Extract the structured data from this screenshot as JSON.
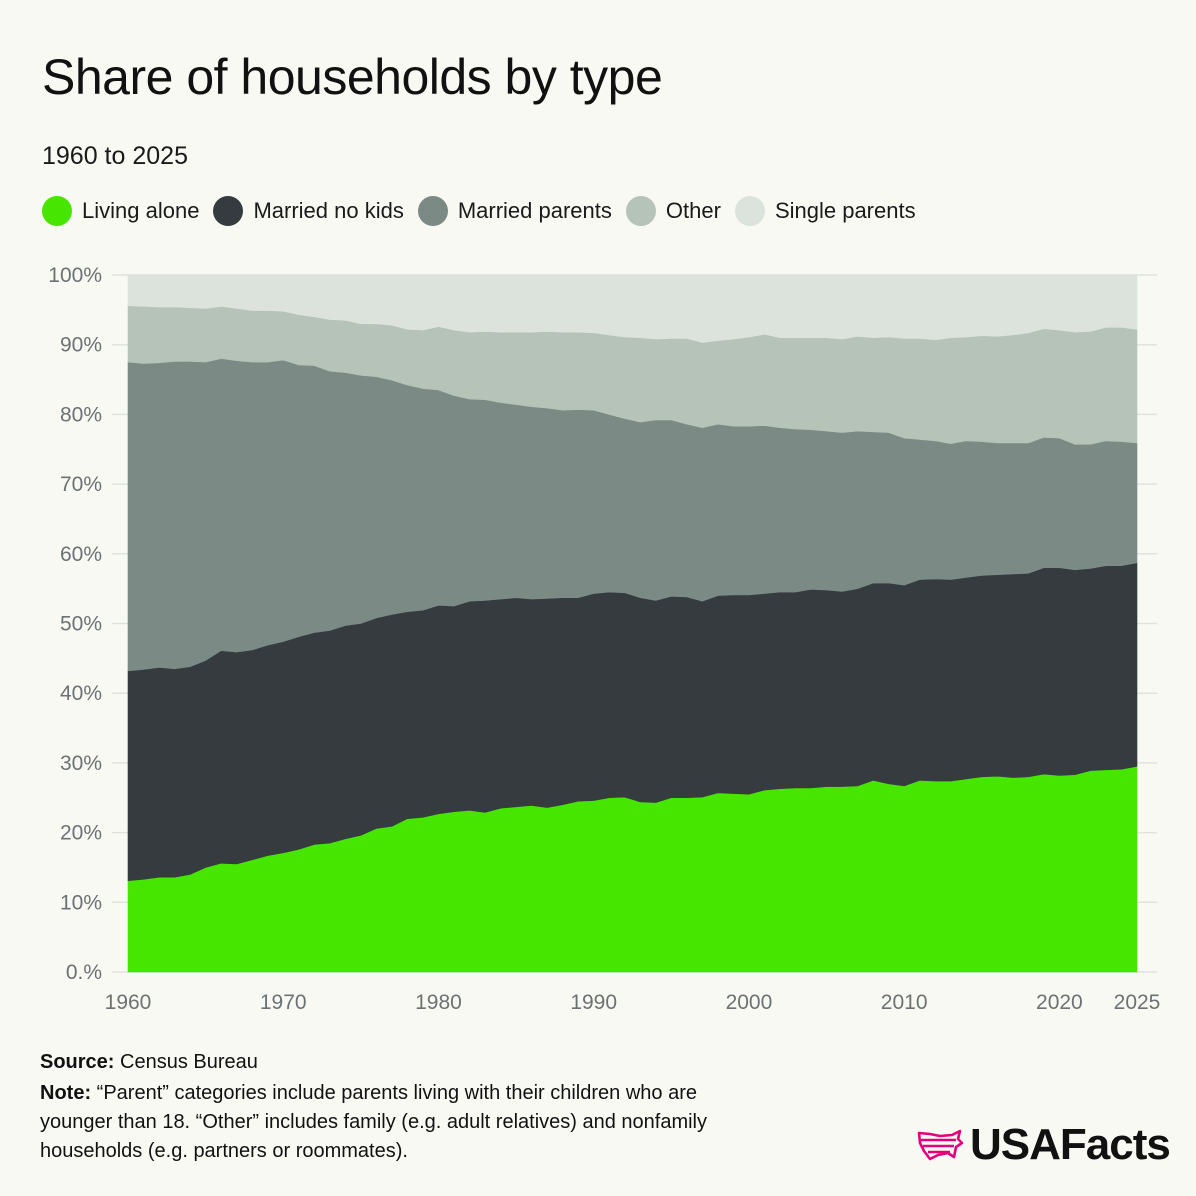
{
  "title": "Share of households by type",
  "subtitle": "1960 to 2025",
  "footer": {
    "source_label": "Source:",
    "source_text": "Census Bureau",
    "note_label": "Note:",
    "note_text": "“Parent” categories include parents living with their children who are younger than 18. “Other” includes family (e.g. adult relatives) and nonfamily households (e.g. partners or roommates)."
  },
  "brand": {
    "name": "USAFacts",
    "icon": "usa-map-icon",
    "color": "#e4007c"
  },
  "chart_data": {
    "type": "area",
    "stacked": true,
    "title": "Share of households by type",
    "subtitle": "1960 to 2025",
    "xlim": [
      1960,
      2025
    ],
    "ylim": [
      0,
      100
    ],
    "grid": true,
    "legend_position": "top-left",
    "y_ticks": [
      0,
      10,
      20,
      30,
      40,
      50,
      60,
      70,
      80,
      90,
      100
    ],
    "y_tick_labels": [
      "0.%",
      "10%",
      "20%",
      "30%",
      "40%",
      "50%",
      "60%",
      "70%",
      "80%",
      "90%",
      "100%"
    ],
    "x_ticks": [
      1960,
      1970,
      1980,
      1990,
      2000,
      2010,
      2020,
      2025
    ],
    "x_tick_labels": [
      "1960",
      "1970",
      "1980",
      "1990",
      "2000",
      "2010",
      "2020",
      "2025"
    ],
    "x": [
      1960,
      1961,
      1962,
      1963,
      1964,
      1965,
      1966,
      1967,
      1968,
      1969,
      1970,
      1971,
      1972,
      1973,
      1974,
      1975,
      1976,
      1977,
      1978,
      1979,
      1980,
      1981,
      1982,
      1983,
      1984,
      1985,
      1986,
      1987,
      1988,
      1989,
      1990,
      1991,
      1992,
      1993,
      1994,
      1995,
      1996,
      1997,
      1998,
      1999,
      2000,
      2001,
      2002,
      2003,
      2004,
      2005,
      2006,
      2007,
      2008,
      2009,
      2010,
      2011,
      2012,
      2013,
      2014,
      2015,
      2016,
      2017,
      2018,
      2019,
      2020,
      2021,
      2022,
      2023,
      2024,
      2025
    ],
    "series": [
      {
        "name": "Living alone",
        "color": "#46e600",
        "values": [
          13.1,
          13.3,
          13.6,
          13.6,
          14.0,
          15.0,
          15.6,
          15.5,
          16.1,
          16.7,
          17.1,
          17.6,
          18.3,
          18.5,
          19.1,
          19.6,
          20.6,
          20.9,
          22.0,
          22.2,
          22.7,
          23.0,
          23.2,
          22.9,
          23.5,
          23.7,
          23.9,
          23.6,
          24.0,
          24.5,
          24.6,
          25.0,
          25.1,
          24.4,
          24.3,
          25.0,
          25.0,
          25.1,
          25.7,
          25.6,
          25.5,
          26.1,
          26.3,
          26.4,
          26.4,
          26.6,
          26.6,
          26.7,
          27.5,
          27.0,
          26.7,
          27.5,
          27.4,
          27.4,
          27.7,
          28.0,
          28.1,
          27.9,
          28.0,
          28.4,
          28.2,
          28.3,
          28.9,
          29.0,
          29.1,
          29.5
        ]
      },
      {
        "name": "Married no kids",
        "color": "#353b3e",
        "values": [
          30.1,
          30.1,
          30.1,
          29.9,
          29.8,
          29.7,
          30.5,
          30.4,
          30.1,
          30.2,
          30.3,
          30.5,
          30.4,
          30.5,
          30.6,
          30.4,
          30.2,
          30.4,
          29.7,
          29.7,
          29.9,
          29.5,
          30.0,
          30.4,
          30.0,
          30.0,
          29.6,
          30.0,
          29.7,
          29.2,
          29.7,
          29.5,
          29.3,
          29.3,
          29.0,
          28.9,
          28.8,
          28.1,
          28.3,
          28.5,
          28.6,
          28.2,
          28.2,
          28.1,
          28.5,
          28.2,
          28.0,
          28.3,
          28.3,
          28.8,
          28.8,
          28.8,
          29.0,
          28.9,
          28.9,
          28.9,
          28.9,
          29.2,
          29.2,
          29.6,
          29.8,
          29.4,
          29.0,
          29.3,
          29.2,
          29.2
        ]
      },
      {
        "name": "Married parents",
        "color": "#7b8a85",
        "values": [
          44.3,
          43.9,
          43.7,
          44.1,
          43.8,
          42.8,
          41.9,
          41.8,
          41.3,
          40.6,
          40.4,
          39.0,
          38.3,
          37.2,
          36.3,
          35.6,
          34.6,
          33.6,
          32.5,
          31.8,
          30.9,
          30.2,
          29.0,
          28.8,
          28.2,
          27.7,
          27.6,
          27.3,
          26.9,
          27.0,
          26.3,
          25.5,
          25.0,
          25.2,
          25.9,
          25.3,
          24.8,
          24.9,
          24.6,
          24.2,
          24.2,
          24.1,
          23.6,
          23.4,
          22.9,
          22.8,
          22.8,
          22.6,
          21.7,
          21.6,
          21.1,
          20.1,
          19.8,
          19.5,
          19.6,
          19.2,
          18.9,
          18.8,
          18.7,
          18.7,
          18.6,
          18.0,
          17.8,
          17.9,
          17.8,
          17.2
        ]
      },
      {
        "name": "Other",
        "color": "#b5c3b9",
        "values": [
          8.1,
          8.2,
          8.0,
          7.8,
          7.7,
          7.7,
          7.5,
          7.5,
          7.4,
          7.4,
          7.0,
          7.2,
          7.0,
          7.4,
          7.5,
          7.4,
          7.6,
          7.9,
          8.0,
          8.4,
          9.1,
          9.4,
          9.6,
          9.8,
          10.1,
          10.4,
          10.7,
          11.0,
          11.2,
          11.1,
          11.1,
          11.4,
          11.7,
          12.1,
          11.6,
          11.7,
          12.3,
          12.2,
          12.0,
          12.5,
          12.8,
          13.1,
          12.9,
          13.1,
          13.2,
          13.4,
          13.4,
          13.6,
          13.5,
          13.7,
          14.3,
          14.5,
          14.5,
          15.2,
          14.9,
          15.2,
          15.3,
          15.5,
          15.8,
          15.6,
          15.5,
          16.1,
          16.2,
          16.3,
          16.4,
          16.3
        ]
      },
      {
        "name": "Single parents",
        "color": "#dce3dc",
        "values": [
          4.4,
          4.5,
          4.6,
          4.6,
          4.7,
          4.8,
          4.5,
          4.8,
          5.1,
          5.1,
          5.2,
          5.7,
          6.0,
          6.4,
          6.5,
          7.0,
          7.0,
          7.2,
          7.8,
          7.9,
          7.4,
          7.9,
          8.2,
          8.1,
          8.2,
          8.2,
          8.2,
          8.1,
          8.2,
          8.2,
          8.3,
          8.6,
          8.9,
          9.0,
          9.2,
          9.1,
          9.1,
          9.7,
          9.4,
          9.2,
          8.9,
          8.5,
          9.0,
          9.0,
          9.0,
          9.0,
          9.2,
          8.8,
          9.0,
          8.9,
          9.1,
          9.1,
          9.3,
          9.0,
          8.9,
          8.7,
          8.8,
          8.6,
          8.3,
          7.7,
          7.9,
          8.2,
          8.1,
          7.5,
          7.5,
          7.8
        ]
      }
    ]
  }
}
